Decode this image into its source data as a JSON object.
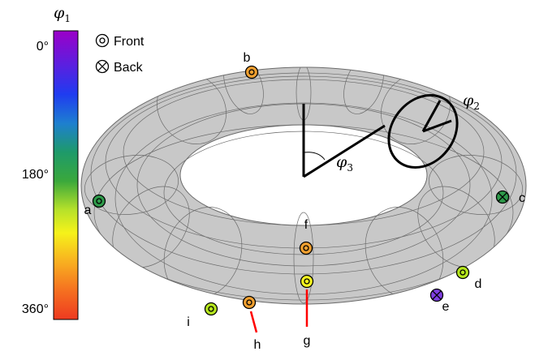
{
  "colorbar": {
    "symbol": "φ",
    "subscript": "1",
    "ticks": [
      "0°",
      "180°",
      "360°"
    ]
  },
  "legend": {
    "front_label": "Front",
    "back_label": "Back"
  },
  "angles": {
    "phi2": {
      "symbol": "φ",
      "subscript": "2"
    },
    "phi3": {
      "symbol": "φ",
      "subscript": "3"
    }
  },
  "points": [
    {
      "id": "a",
      "label": "a",
      "side": "front",
      "color": "#2e9a4a"
    },
    {
      "id": "b",
      "label": "b",
      "side": "front",
      "color": "#f0a030"
    },
    {
      "id": "c",
      "label": "c",
      "side": "back",
      "color": "#2e9a4a"
    },
    {
      "id": "d",
      "label": "d",
      "side": "front",
      "color": "#b5e61d"
    },
    {
      "id": "e",
      "label": "e",
      "side": "back",
      "color": "#7f3fe0"
    },
    {
      "id": "f",
      "label": "f",
      "side": "front",
      "color": "#f0a030"
    },
    {
      "id": "g",
      "label": "g",
      "side": "front",
      "color": "#f5f520"
    },
    {
      "id": "h",
      "label": "h",
      "side": "front",
      "color": "#f0a030"
    },
    {
      "id": "i",
      "label": "i",
      "side": "front",
      "color": "#b5e61d"
    }
  ],
  "colors": {
    "torus_fill": "#c8c8c8",
    "grid_line": "#6b6b6b",
    "pointer_line": "#ff0000"
  }
}
